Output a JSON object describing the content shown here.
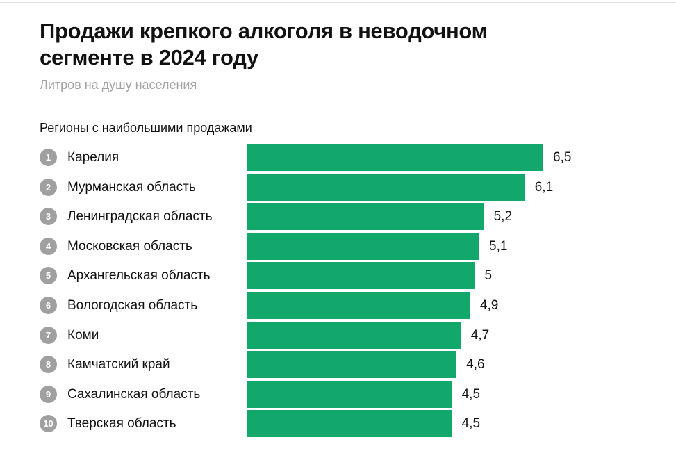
{
  "chart_data": {
    "type": "bar",
    "orientation": "horizontal",
    "title": "Продажи крепкого алкоголя в неводочном сегменте в 2024 году",
    "subtitle": "Литров на душу населения",
    "section_label": "Регионы с наибольшими продажами",
    "categories": [
      "Карелия",
      "Мурманская область",
      "Ленинградская область",
      "Московская область",
      "Архангельская область",
      "Вологодская область",
      "Коми",
      "Камчатский край",
      "Сахалинская область",
      "Тверская область"
    ],
    "ranks": [
      "1",
      "2",
      "3",
      "4",
      "5",
      "6",
      "7",
      "8",
      "9",
      "10"
    ],
    "values": [
      6.5,
      6.1,
      5.2,
      5.1,
      5,
      4.9,
      4.7,
      4.6,
      4.5,
      4.5
    ],
    "value_labels": [
      "6,5",
      "6,1",
      "5,2",
      "5,1",
      "5",
      "4,9",
      "4,7",
      "4,6",
      "4,5",
      "4,5"
    ],
    "xlim": [
      0,
      6.5
    ],
    "grid": false,
    "bar_color": "#12a86c",
    "rank_badge_color": "#a0a0a0"
  }
}
